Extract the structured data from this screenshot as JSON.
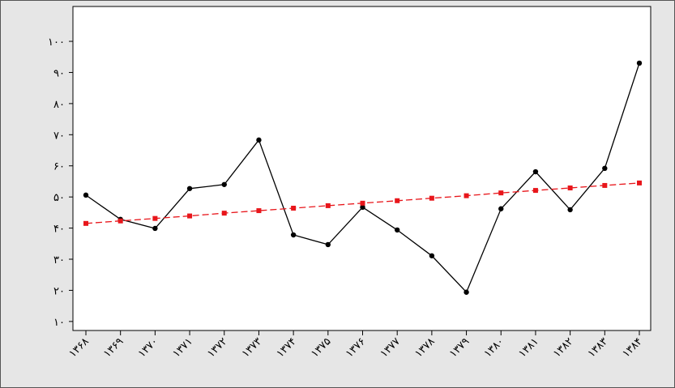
{
  "chart_data": {
    "type": "line",
    "categories": [
      "۱۳۶۸",
      "۱۳۶۹",
      "۱۳۷۰",
      "۱۳۷۱",
      "۱۳۷۲",
      "۱۳۷۳",
      "۱۳۷۴",
      "۱۳۷۵",
      "۱۳۷۶",
      "۱۳۷۷",
      "۱۳۷۸",
      "۱۳۷۹",
      "۱۳۸۰",
      "۱۳۸۱",
      "۱۳۸۲",
      "۱۳۸۳",
      "۱۳۸۴"
    ],
    "series": [
      {
        "color": "#000000",
        "marker": "circle",
        "dashed": false,
        "values": [
          50.6,
          42.8,
          39.9,
          52.7,
          54.0,
          68.3,
          37.8,
          34.7,
          46.7,
          39.4,
          31.1,
          19.4,
          46.2,
          58.1,
          45.9,
          59.2,
          93.0
        ]
      },
      {
        "color": "#e8161b",
        "marker": "square",
        "dashed": true,
        "values": [
          41.5,
          42.3,
          43.1,
          43.9,
          44.8,
          45.6,
          46.4,
          47.2,
          48.0,
          48.8,
          49.6,
          50.4,
          51.3,
          52.1,
          52.9,
          53.7,
          54.5
        ]
      }
    ],
    "ylim": [
      7.1,
      111.2
    ],
    "yticks": [
      {
        "value": 10,
        "label": "۱۰"
      },
      {
        "value": 20,
        "label": "۲۰"
      },
      {
        "value": 30,
        "label": "۳۰"
      },
      {
        "value": 40,
        "label": "۴۰"
      },
      {
        "value": 50,
        "label": "۵۰"
      },
      {
        "value": 60,
        "label": "۶۰"
      },
      {
        "value": 70,
        "label": "۷۰"
      },
      {
        "value": 80,
        "label": "۸۰"
      },
      {
        "value": 90,
        "label": "۹۰"
      },
      {
        "value": 100,
        "label": "۱۰۰"
      }
    ],
    "grid": false
  }
}
